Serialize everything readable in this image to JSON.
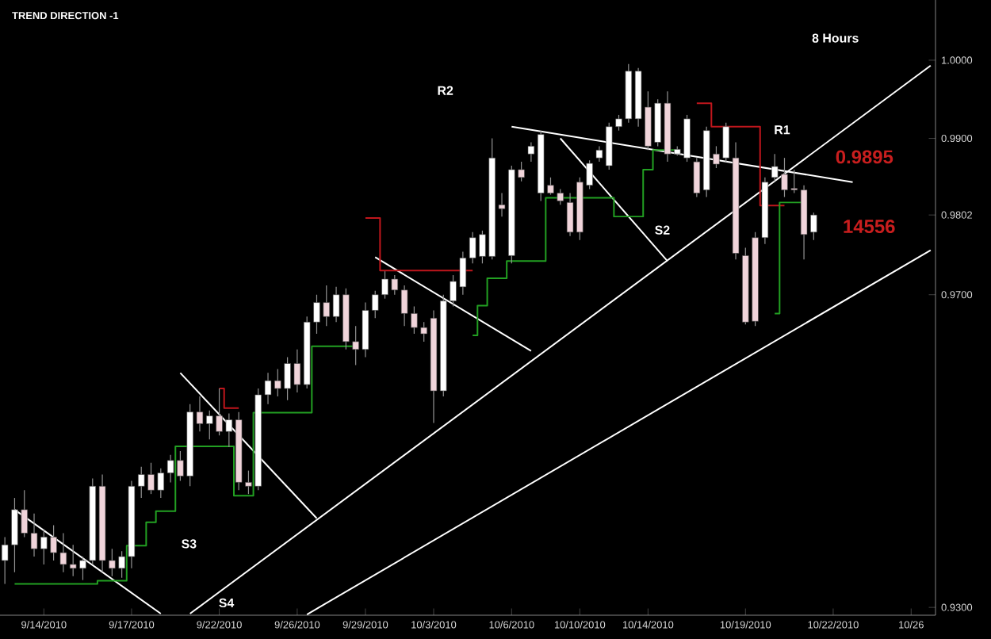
{
  "chart_data": {
    "type": "candlestick",
    "title": "TREND DIRECTION -1",
    "categories": [
      null,
      null,
      null,
      null,
      "9/14/2010",
      null,
      null,
      null,
      null,
      null,
      null,
      null,
      null,
      "9/17/2010",
      null,
      null,
      null,
      null,
      null,
      null,
      null,
      null,
      "9/22/2010",
      null,
      null,
      null,
      null,
      null,
      null,
      null,
      "9/26/2010",
      null,
      null,
      null,
      null,
      null,
      null,
      "9/29/2010",
      null,
      null,
      null,
      null,
      null,
      null,
      "10/3/2010",
      null,
      null,
      null,
      null,
      null,
      null,
      null,
      "10/6/2010",
      null,
      null,
      null,
      null,
      null,
      null,
      "10/10/2010",
      null,
      null,
      null,
      null,
      null,
      null,
      "10/14/2010",
      null,
      null,
      null,
      null,
      null,
      null,
      null,
      null,
      null,
      "10/19/2010",
      null,
      null,
      null,
      null,
      null,
      null,
      null,
      null,
      "10/22/2010",
      null,
      null,
      null,
      null,
      null,
      null,
      null,
      "10/26",
      null,
      null
    ],
    "ylim": [
      0.929,
      1.0077
    ],
    "yticks": [
      {
        "value": 0.93,
        "label": "0.9300"
      },
      {
        "value": 0.97,
        "label": "0.9700"
      },
      {
        "value": 0.9802,
        "label": "0.9802"
      },
      {
        "value": 0.99,
        "label": "0.9900"
      },
      {
        "value": 1.0,
        "label": "1.0000"
      }
    ],
    "annotations": [
      "R2",
      "R1",
      "S2",
      "S3",
      "S4",
      "8 Hours",
      "0.9895",
      "14556"
    ],
    "series": [
      {
        "type": "line",
        "color": "#ffffff",
        "values": [
          null,
          0.9425,
          null,
          null,
          null,
          null,
          null,
          null,
          null,
          null,
          null,
          null,
          null,
          null,
          null,
          null,
          0.9292,
          null,
          null,
          null,
          null,
          null,
          null,
          null,
          null,
          null,
          null,
          null,
          null,
          null,
          null,
          null,
          null,
          null,
          null,
          null,
          null,
          null,
          null,
          null,
          null,
          null,
          null,
          null,
          null,
          null,
          null,
          null,
          null,
          null,
          null,
          null,
          null,
          null,
          null,
          null,
          null,
          null,
          null,
          null,
          null,
          null,
          null,
          null,
          null,
          null,
          null,
          null,
          null,
          null,
          null,
          null,
          null,
          null,
          null,
          null,
          null,
          null,
          null,
          null,
          null,
          null,
          null,
          null,
          null,
          null,
          null,
          null,
          null,
          null,
          null,
          null,
          null,
          null,
          null,
          null
        ]
      },
      {
        "type": "line",
        "color": "#ffffff",
        "values": [
          null,
          null,
          null,
          null,
          null,
          null,
          null,
          null,
          null,
          null,
          null,
          null,
          null,
          null,
          null,
          null,
          null,
          null,
          0.96,
          null,
          null,
          null,
          null,
          null,
          null,
          null,
          null,
          null,
          null,
          null,
          null,
          null,
          0.9414,
          null,
          null,
          null,
          null,
          null,
          null,
          null,
          null,
          null,
          null,
          null,
          null,
          null,
          null,
          null,
          null,
          null,
          null,
          null,
          null,
          null,
          null,
          null,
          null,
          null,
          null,
          null,
          null,
          null,
          null,
          null,
          null,
          null,
          null,
          null,
          null,
          null,
          null,
          null,
          null,
          null,
          null,
          null,
          null,
          null,
          null,
          null,
          null,
          null,
          null,
          null,
          null,
          null,
          null,
          null,
          null,
          null,
          null,
          null,
          null,
          null,
          null,
          null
        ]
      },
      {
        "type": "line",
        "color": "#ffffff",
        "values": [
          null,
          null,
          null,
          null,
          null,
          null,
          null,
          null,
          null,
          null,
          null,
          null,
          null,
          null,
          null,
          null,
          null,
          null,
          null,
          0.9292,
          null,
          null,
          null,
          null,
          null,
          null,
          null,
          null,
          null,
          null,
          null,
          null,
          null,
          null,
          null,
          null,
          null,
          null,
          null,
          null,
          null,
          null,
          null,
          null,
          null,
          null,
          null,
          null,
          null,
          null,
          null,
          null,
          null,
          null,
          null,
          null,
          null,
          null,
          null,
          null,
          null,
          null,
          null,
          null,
          null,
          null,
          null,
          null,
          null,
          null,
          null,
          null,
          null,
          null,
          null,
          null,
          null,
          null,
          null,
          null,
          null,
          null,
          null,
          null,
          null,
          null,
          null,
          null,
          null,
          null,
          null,
          null,
          null,
          null,
          null,
          0.9993
        ]
      },
      {
        "type": "line",
        "color": "#ffffff",
        "values": [
          null,
          null,
          null,
          null,
          null,
          null,
          null,
          null,
          null,
          null,
          null,
          null,
          null,
          null,
          null,
          null,
          null,
          null,
          null,
          null,
          null,
          null,
          null,
          null,
          null,
          null,
          null,
          null,
          null,
          null,
          null,
          0.9291,
          null,
          null,
          null,
          null,
          null,
          null,
          null,
          null,
          null,
          null,
          null,
          null,
          null,
          null,
          null,
          null,
          null,
          null,
          null,
          null,
          null,
          null,
          null,
          null,
          null,
          null,
          null,
          null,
          null,
          null,
          null,
          null,
          null,
          null,
          null,
          null,
          null,
          null,
          null,
          null,
          null,
          null,
          null,
          null,
          null,
          null,
          null,
          null,
          null,
          null,
          null,
          null,
          null,
          null,
          null,
          null,
          null,
          null,
          null,
          null,
          null,
          null,
          null,
          0.9757
        ]
      },
      {
        "type": "line",
        "color": "#ffffff",
        "values": [
          null,
          null,
          null,
          null,
          null,
          null,
          null,
          null,
          null,
          null,
          null,
          null,
          null,
          null,
          null,
          null,
          null,
          null,
          null,
          null,
          null,
          null,
          null,
          null,
          null,
          null,
          null,
          null,
          null,
          null,
          null,
          null,
          null,
          null,
          null,
          null,
          null,
          null,
          null,
          null,
          null,
          null,
          null,
          null,
          null,
          null,
          null,
          null,
          null,
          null,
          null,
          null,
          0.9915,
          null,
          null,
          null,
          null,
          null,
          null,
          null,
          null,
          null,
          null,
          null,
          null,
          null,
          null,
          null,
          null,
          null,
          null,
          null,
          null,
          null,
          null,
          null,
          null,
          null,
          null,
          null,
          null,
          null,
          null,
          null,
          null,
          null,
          null,
          0.9844,
          null,
          null,
          null,
          null,
          null,
          null,
          null,
          null
        ]
      },
      {
        "type": "line",
        "color": "#ffffff",
        "values": [
          null,
          null,
          null,
          null,
          null,
          null,
          null,
          null,
          null,
          null,
          null,
          null,
          null,
          null,
          null,
          null,
          null,
          null,
          null,
          null,
          null,
          null,
          null,
          null,
          null,
          null,
          null,
          null,
          null,
          null,
          null,
          null,
          null,
          null,
          null,
          null,
          null,
          null,
          0.9748,
          null,
          null,
          null,
          null,
          null,
          null,
          null,
          null,
          null,
          null,
          null,
          null,
          null,
          null,
          null,
          0.9628,
          null,
          null,
          null,
          null,
          null,
          null,
          null,
          null,
          null,
          null,
          null,
          null,
          null,
          null,
          null,
          null,
          null,
          null,
          null,
          null,
          null,
          null,
          null,
          null,
          null,
          null,
          null,
          null,
          null,
          null,
          null,
          null,
          null,
          null,
          null,
          null,
          null,
          null,
          null,
          null,
          null
        ]
      },
      {
        "type": "line",
        "color": "#ffffff",
        "values": [
          null,
          null,
          null,
          null,
          null,
          null,
          null,
          null,
          null,
          null,
          null,
          null,
          null,
          null,
          null,
          null,
          null,
          null,
          null,
          null,
          null,
          null,
          null,
          null,
          null,
          null,
          null,
          null,
          null,
          null,
          null,
          null,
          null,
          null,
          null,
          null,
          null,
          null,
          null,
          null,
          null,
          null,
          null,
          null,
          null,
          null,
          null,
          null,
          null,
          null,
          null,
          null,
          null,
          null,
          null,
          null,
          null,
          0.99,
          null,
          null,
          null,
          null,
          null,
          null,
          null,
          null,
          null,
          null,
          0.9743,
          null,
          null,
          null,
          null,
          null,
          null,
          null,
          null,
          null,
          null,
          null,
          null,
          null,
          null,
          null,
          null,
          null,
          null,
          null,
          null,
          null,
          null,
          null,
          null,
          null,
          null,
          null
        ]
      },
      {
        "type": "step",
        "color": "#c0161c",
        "values": [
          null,
          null,
          null,
          null,
          null,
          null,
          null,
          null,
          null,
          null,
          null,
          null,
          null,
          null,
          null,
          null,
          null,
          null,
          null,
          null,
          null,
          null,
          0.958,
          0.9555,
          0.9555,
          null,
          null,
          null,
          null,
          null,
          null,
          null,
          null,
          null,
          null,
          null,
          null,
          0.9798,
          0.9798,
          0.9731,
          0.9731,
          0.9731,
          0.9731,
          0.9731,
          0.9731,
          0.9731,
          0.9731,
          0.9731,
          0.9731,
          null,
          null,
          null,
          null,
          null,
          null,
          null,
          null,
          null,
          null,
          null,
          null,
          null,
          null,
          null,
          null,
          null,
          null,
          null,
          null,
          null,
          null,
          0.9945,
          0.9945,
          0.9915,
          0.9915,
          0.9915,
          0.9915,
          0.9915,
          0.9814,
          0.9814,
          0.9814,
          null,
          null,
          null,
          null,
          null,
          null,
          null,
          null,
          null,
          null,
          null,
          null,
          null,
          null,
          null
        ]
      },
      {
        "type": "step",
        "color": "#22a022",
        "values": [
          null,
          0.933,
          0.933,
          0.933,
          0.933,
          0.933,
          0.933,
          0.933,
          0.933,
          0.933,
          0.9334,
          0.9334,
          0.9334,
          0.9379,
          0.9379,
          0.9409,
          0.9423,
          0.9423,
          0.9506,
          0.9506,
          0.9506,
          0.9506,
          0.9506,
          0.9506,
          0.9443,
          0.9443,
          0.9549,
          0.9549,
          0.9549,
          0.9549,
          0.9549,
          0.9549,
          0.9634,
          0.9634,
          0.9634,
          0.9634,
          0.9634,
          null,
          null,
          null,
          null,
          null,
          null,
          null,
          null,
          null,
          null,
          null,
          0.9648,
          0.9686,
          0.9721,
          0.9721,
          0.9743,
          0.9743,
          0.9743,
          0.9743,
          0.9824,
          0.9824,
          0.9824,
          0.9824,
          0.9824,
          0.9824,
          0.9824,
          0.98,
          0.98,
          0.98,
          0.986,
          0.9885,
          0.9885,
          0.9885,
          null,
          null,
          null,
          null,
          null,
          null,
          null,
          null,
          null,
          0.9676,
          0.9818,
          0.9818,
          0.9818,
          null,
          null,
          null,
          null,
          null,
          null,
          null,
          null,
          null,
          null,
          null,
          null,
          null
        ]
      },
      {
        "ohlc": [
          [
            0.936,
            0.939,
            0.933,
            0.938
          ],
          [
            0.938,
            0.944,
            0.9345,
            0.9425
          ],
          [
            0.9425,
            0.945,
            0.939,
            0.9395
          ],
          [
            0.9395,
            0.942,
            0.9365,
            0.9375
          ],
          [
            0.9375,
            0.94,
            0.9355,
            0.939
          ],
          [
            0.939,
            0.9405,
            0.936,
            0.937
          ],
          [
            0.937,
            0.9395,
            0.9345,
            0.9355
          ],
          [
            0.9355,
            0.938,
            0.934,
            0.935
          ],
          [
            0.935,
            0.9365,
            0.9335,
            0.936
          ],
          [
            0.936,
            0.9465,
            0.9355,
            0.9455
          ],
          [
            0.9455,
            0.947,
            0.9345,
            0.936
          ],
          [
            0.936,
            0.9375,
            0.934,
            0.935
          ],
          [
            0.935,
            0.9372,
            0.9338,
            0.9365
          ],
          [
            0.9365,
            0.9462,
            0.935,
            0.9455
          ],
          [
            0.9455,
            0.948,
            0.944,
            0.947
          ],
          [
            0.947,
            0.9485,
            0.9445,
            0.945
          ],
          [
            0.945,
            0.9478,
            0.944,
            0.9472
          ],
          [
            0.9472,
            0.9495,
            0.946,
            0.9488
          ],
          [
            0.9488,
            0.95,
            0.9462,
            0.9468
          ],
          [
            0.9468,
            0.956,
            0.9455,
            0.955
          ],
          [
            0.955,
            0.957,
            0.9525,
            0.9535
          ],
          [
            0.9535,
            0.9552,
            0.9515,
            0.9545
          ],
          [
            0.9545,
            0.958,
            0.952,
            0.9525
          ],
          [
            0.9525,
            0.9548,
            0.9505,
            0.954
          ],
          [
            0.954,
            0.955,
            0.945,
            0.946
          ],
          [
            0.946,
            0.9475,
            0.9445,
            0.9455
          ],
          [
            0.9455,
            0.958,
            0.945,
            0.9572
          ],
          [
            0.9572,
            0.96,
            0.956,
            0.959
          ],
          [
            0.959,
            0.9605,
            0.957,
            0.958
          ],
          [
            0.958,
            0.962,
            0.9565,
            0.9612
          ],
          [
            0.9612,
            0.963,
            0.9575,
            0.9585
          ],
          [
            0.9585,
            0.9672,
            0.958,
            0.9665
          ],
          [
            0.9665,
            0.97,
            0.965,
            0.969
          ],
          [
            0.969,
            0.9712,
            0.966,
            0.9672
          ],
          [
            0.9672,
            0.971,
            0.9665,
            0.97
          ],
          [
            0.97,
            0.9708,
            0.963,
            0.964
          ],
          [
            0.964,
            0.966,
            0.961,
            0.963
          ],
          [
            0.963,
            0.969,
            0.962,
            0.968
          ],
          [
            0.968,
            0.9705,
            0.967,
            0.97
          ],
          [
            0.97,
            0.973,
            0.9695,
            0.972
          ],
          [
            0.972,
            0.9725,
            0.97,
            0.9706
          ],
          [
            0.9706,
            0.9712,
            0.966,
            0.9676
          ],
          [
            0.9676,
            0.9685,
            0.965,
            0.9658
          ],
          [
            0.9658,
            0.9665,
            0.964,
            0.965
          ],
          [
            0.967,
            0.968,
            0.9536,
            0.9577
          ],
          [
            0.9577,
            0.97,
            0.957,
            0.9692
          ],
          [
            0.9692,
            0.9725,
            0.9685,
            0.9717
          ],
          [
            0.971,
            0.9755,
            0.97,
            0.9747
          ],
          [
            0.9747,
            0.978,
            0.974,
            0.9773
          ],
          [
            0.9749,
            0.9782,
            0.974,
            0.9777
          ],
          [
            0.9749,
            0.99,
            0.9745,
            0.9875
          ],
          [
            0.9815,
            0.983,
            0.98,
            0.981
          ],
          [
            0.975,
            0.9865,
            0.974,
            0.986
          ],
          [
            0.986,
            0.987,
            0.9845,
            0.985
          ],
          [
            0.988,
            0.9895,
            0.987,
            0.989
          ],
          [
            0.983,
            0.991,
            0.982,
            0.9905
          ],
          [
            0.984,
            0.985,
            0.9828,
            0.983
          ],
          [
            0.983,
            0.9835,
            0.9815,
            0.982
          ],
          [
            0.9818,
            0.983,
            0.9775,
            0.978
          ],
          [
            0.9844,
            0.985,
            0.977,
            0.978
          ],
          [
            0.984,
            0.9872,
            0.9835,
            0.9868
          ],
          [
            0.9875,
            0.989,
            0.987,
            0.9885
          ],
          [
            0.9865,
            0.992,
            0.986,
            0.9915
          ],
          [
            0.9915,
            0.993,
            0.991,
            0.9925
          ],
          [
            0.9925,
            0.9995,
            0.992,
            0.9986
          ],
          [
            0.9925,
            0.999,
            0.9915,
            0.9986
          ],
          [
            0.994,
            0.996,
            0.9885,
            0.989
          ],
          [
            0.9895,
            0.995,
            0.989,
            0.9945
          ],
          [
            0.9945,
            0.996,
            0.987,
            0.988
          ],
          [
            0.988,
            0.989,
            0.9878,
            0.9886
          ],
          [
            0.9875,
            0.993,
            0.987,
            0.9925
          ],
          [
            0.987,
            0.9875,
            0.9825,
            0.983
          ],
          [
            0.9834,
            0.9915,
            0.9825,
            0.991
          ],
          [
            0.988,
            0.989,
            0.9862,
            0.9867
          ],
          [
            0.9875,
            0.992,
            0.987,
            0.9915
          ],
          [
            0.9875,
            0.9895,
            0.9745,
            0.9753
          ],
          [
            0.975,
            0.976,
            0.9662,
            0.9665
          ],
          [
            0.9773,
            0.978,
            0.966,
            0.9666
          ],
          [
            0.9773,
            0.985,
            0.9765,
            0.9844
          ],
          [
            0.985,
            0.988,
            0.9845,
            0.9864
          ],
          [
            0.9854,
            0.9875,
            0.9825,
            0.9834
          ],
          [
            0.9836,
            0.986,
            0.983,
            0.9834
          ],
          [
            0.9834,
            0.984,
            0.9745,
            0.9777
          ],
          [
            0.978,
            0.9805,
            0.977,
            0.9802
          ],
          null,
          null,
          null,
          null,
          null,
          null,
          null,
          null,
          null,
          null,
          null,
          null
        ],
        "colors": [
          "#ffffff",
          "#ffffff",
          "#f0d4da",
          "#f0d4da",
          "#ffffff",
          "#f0d4da",
          "#f0d4da",
          "#f0d4da",
          "#ffffff",
          "#ffffff",
          "#f0d4da",
          "#f0d4da",
          "#ffffff",
          "#ffffff",
          "#ffffff",
          "#f0d4da",
          "#ffffff",
          "#ffffff",
          "#f0d4da",
          "#ffffff",
          "#f0d4da",
          "#ffffff",
          "#f0d4da",
          "#ffffff",
          "#f0d4da",
          "#f0d4da",
          "#ffffff",
          "#ffffff",
          "#f0d4da",
          "#ffffff",
          "#f0d4da",
          "#ffffff",
          "#ffffff",
          "#f0d4da",
          "#ffffff",
          "#f0d4da",
          "#f0d4da",
          "#ffffff",
          "#ffffff",
          "#ffffff",
          "#f0d4da",
          "#f0d4da",
          "#f0d4da",
          "#f0d4da",
          "#f0d4da",
          "#ffffff",
          "#ffffff",
          "#ffffff",
          "#ffffff",
          "#ffffff",
          "#ffffff",
          "#f0d4da",
          "#ffffff",
          "#f0d4da",
          "#ffffff",
          "#ffffff",
          "#f0d4da",
          "#f0d4da",
          "#f0d4da",
          "#f0d4da",
          "#ffffff",
          "#ffffff",
          "#ffffff",
          "#ffffff",
          "#ffffff",
          "#ffffff",
          "#f0d4da",
          "#ffffff",
          "#f0d4da",
          "#ffffff",
          "#ffffff",
          "#f0d4da",
          "#ffffff",
          "#f0d4da",
          "#ffffff",
          "#f0d4da",
          "#f0d4da",
          "#f0d4da",
          "#ffffff",
          "#ffffff",
          "#f0d4da",
          "#f0d4da",
          "#f0d4da",
          "#ffffff",
          null,
          null,
          null,
          null,
          null,
          null,
          null,
          null,
          null,
          null,
          null,
          null
        ]
      }
    ]
  }
}
